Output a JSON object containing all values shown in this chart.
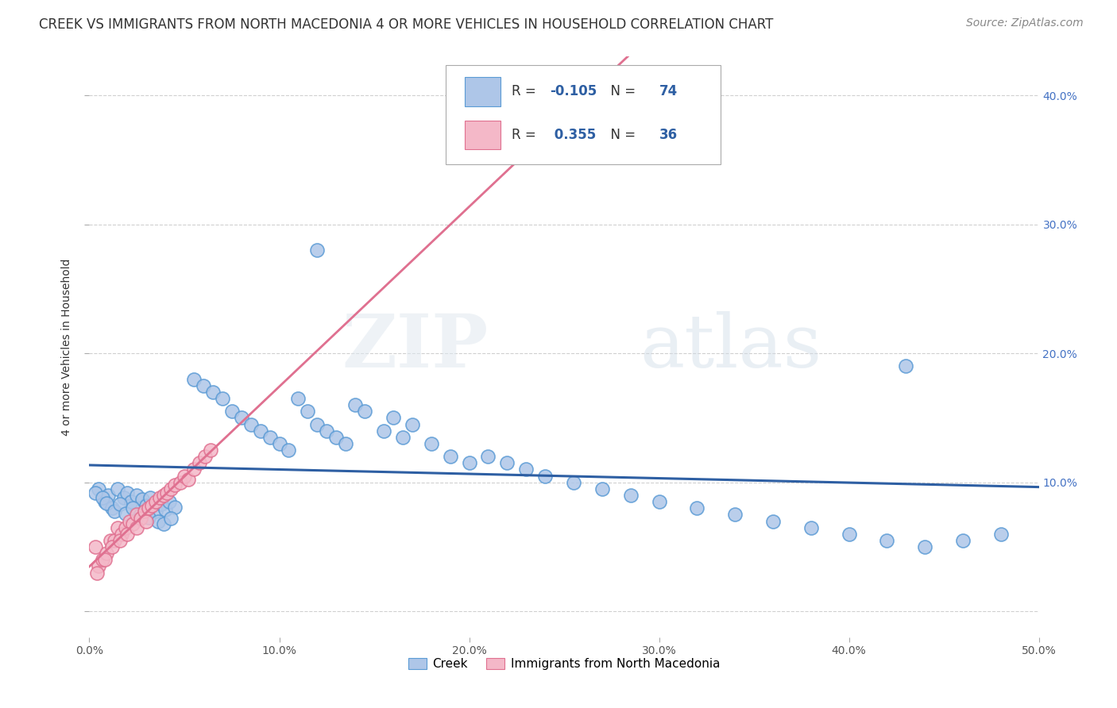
{
  "title": "CREEK VS IMMIGRANTS FROM NORTH MACEDONIA 4 OR MORE VEHICLES IN HOUSEHOLD CORRELATION CHART",
  "source": "Source: ZipAtlas.com",
  "ylabel": "4 or more Vehicles in Household",
  "xlim": [
    0.0,
    0.5
  ],
  "ylim": [
    -0.02,
    0.43
  ],
  "xticks": [
    0.0,
    0.1,
    0.2,
    0.3,
    0.4,
    0.5
  ],
  "yticks": [
    0.0,
    0.1,
    0.2,
    0.3,
    0.4
  ],
  "xticklabels": [
    "0.0%",
    "10.0%",
    "20.0%",
    "30.0%",
    "40.0%",
    "50.0%"
  ],
  "yticklabels": [
    "",
    "10.0%",
    "20.0%",
    "30.0%",
    "40.0%"
  ],
  "creek_color": "#aec6e8",
  "creek_edge_color": "#5b9bd5",
  "nmacedonia_color": "#f4b8c8",
  "nmacedonia_edge_color": "#e07090",
  "creek_R": -0.105,
  "creek_N": 74,
  "nmacedonia_R": 0.355,
  "nmacedonia_N": 36,
  "legend_label1": "Creek",
  "legend_label2": "Immigrants from North Macedonia",
  "watermark_zip": "ZIP",
  "watermark_atlas": "atlas",
  "creek_trend_color": "#2e5fa3",
  "nmac_trend_color": "#e07090",
  "nmac_dash_color": "#c0c0c0",
  "grid_color": "#d0d0d0",
  "background_color": "#ffffff",
  "title_fontsize": 12,
  "axis_fontsize": 10,
  "tick_fontsize": 10,
  "source_fontsize": 10
}
